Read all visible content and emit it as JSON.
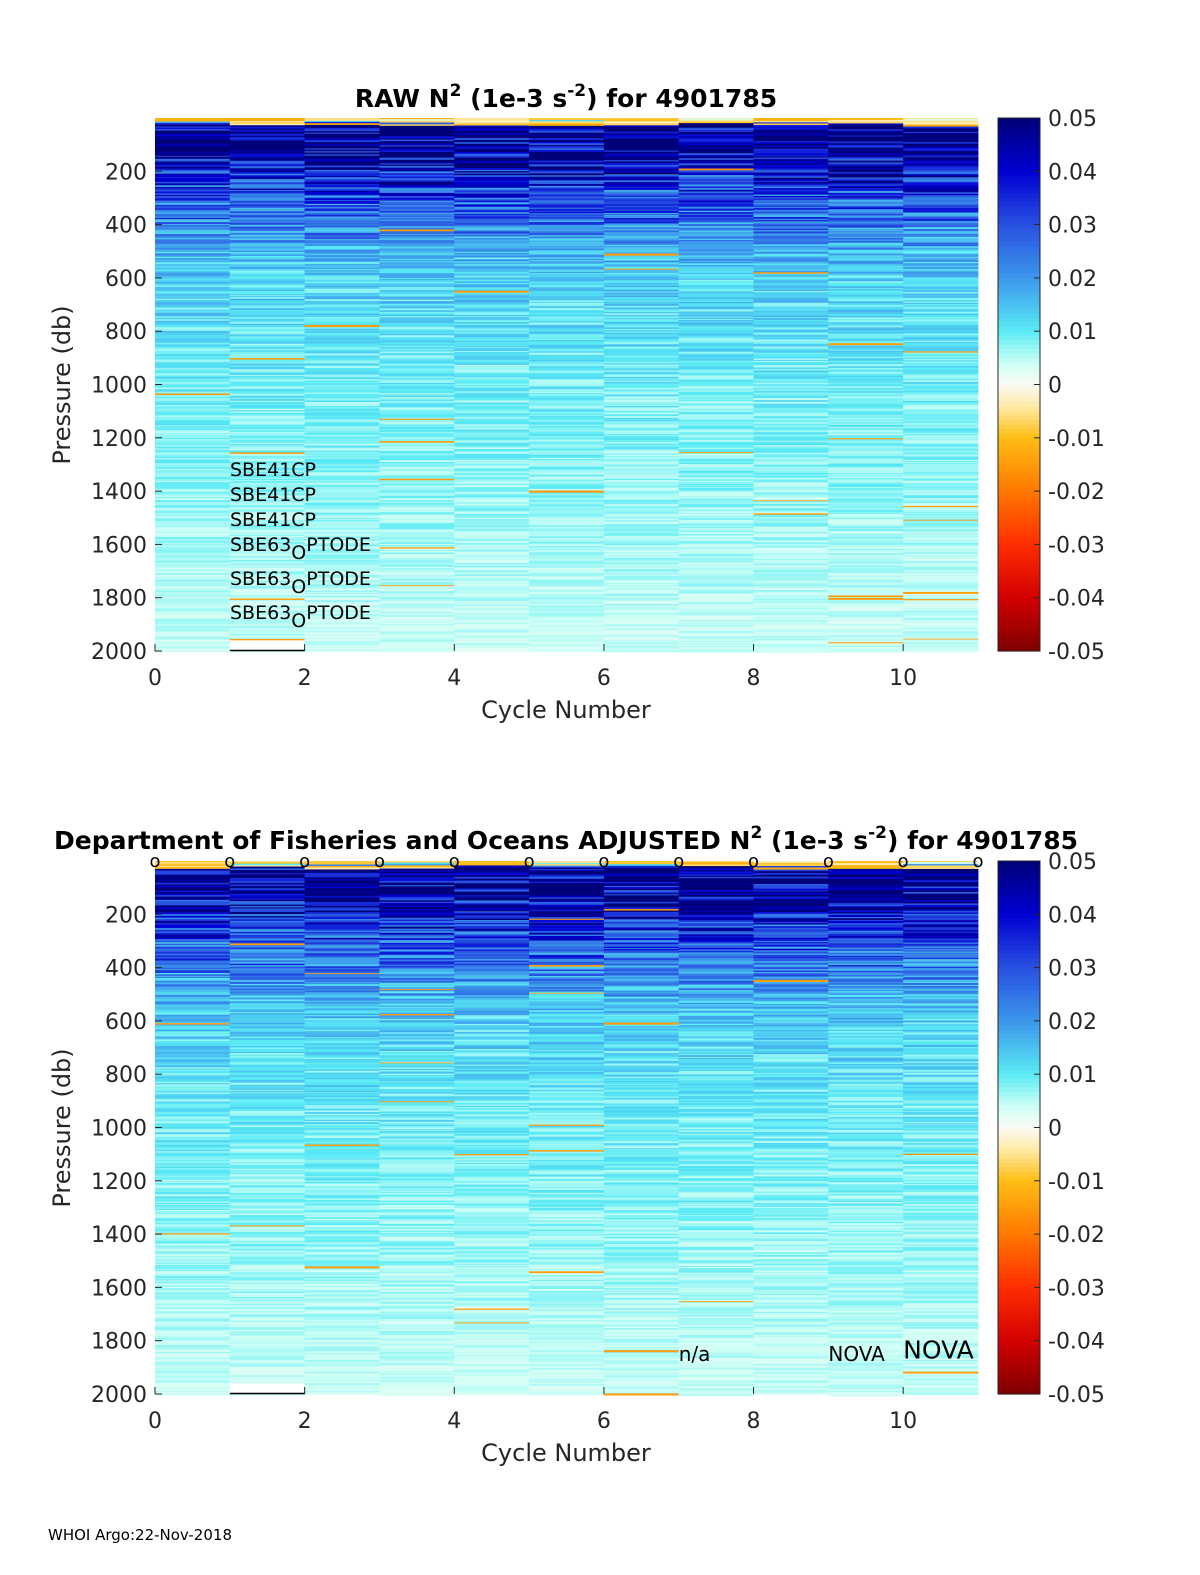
{
  "chart_data": [
    {
      "type": "heatmap",
      "title": {
        "prefix": "RAW N",
        "sup1": "2",
        "mid": " (1e-3 s",
        "sup2": "-2",
        "suffix": ") for 4901785"
      },
      "xlabel": "Cycle Number",
      "ylabel": "Pressure (db)",
      "xlim": [
        0,
        11
      ],
      "ylim": [
        2000,
        0
      ],
      "xticks": [
        "0",
        "2",
        "4",
        "6",
        "8",
        "10"
      ],
      "xtick_values": [
        0,
        2,
        4,
        6,
        8,
        10
      ],
      "yticks": [
        "200",
        "400",
        "600",
        "800",
        "1000",
        "1200",
        "1400",
        "1600",
        "1800",
        "2000"
      ],
      "ytick_values": [
        200,
        400,
        600,
        800,
        1000,
        1200,
        1400,
        1600,
        1800,
        2000
      ],
      "colorbar": {
        "colormap": "jet-diverging",
        "range": [
          -0.05,
          0.05
        ],
        "ticks": [
          "0.05",
          "0.04",
          "0.03",
          "0.02",
          "0.01",
          "0",
          "-0.01",
          "-0.02",
          "-0.03",
          "-0.04",
          "-0.05"
        ],
        "tick_values": [
          0.05,
          0.04,
          0.03,
          0.02,
          0.01,
          0,
          -0.01,
          -0.02,
          -0.03,
          -0.04,
          -0.05
        ]
      },
      "cycles": [
        0,
        1,
        2,
        3,
        4,
        5,
        6,
        7,
        8,
        9,
        10
      ],
      "depth_profile": {
        "pressure_db": [
          0,
          25,
          50,
          100,
          150,
          200,
          300,
          400,
          500,
          600,
          800,
          1000,
          1200,
          1400,
          1600,
          1800,
          2000
        ],
        "n2_typical": [
          -0.004,
          0.05,
          0.05,
          0.05,
          0.045,
          0.038,
          0.03,
          0.024,
          0.017,
          0.013,
          0.011,
          0.009,
          0.008,
          0.007,
          0.006,
          0.005,
          0.004
        ]
      },
      "sensor_labels": [
        {
          "text": "SBE41CP"
        },
        {
          "text": "SBE41CP"
        },
        {
          "text": "SBE41CP"
        },
        {
          "main": "SBE63",
          "sub": "O",
          "rest": "PTODE"
        },
        {
          "main": "SBE63",
          "sub": "O",
          "rest": "PTODE"
        },
        {
          "main": "SBE63",
          "sub": "O",
          "rest": "PTODE"
        }
      ]
    },
    {
      "type": "heatmap",
      "title": {
        "prefix": "Department of Fisheries and Oceans  ADJUSTED N",
        "sup1": "2",
        "mid": " (1e-3 s",
        "sup2": "-2",
        "suffix": ") for 4901785"
      },
      "xlabel": "Cycle Number",
      "ylabel": "Pressure (db)",
      "xlim": [
        0,
        11
      ],
      "ylim": [
        2000,
        0
      ],
      "xticks": [
        "0",
        "2",
        "4",
        "6",
        "8",
        "10"
      ],
      "xtick_values": [
        0,
        2,
        4,
        6,
        8,
        10
      ],
      "yticks": [
        "200",
        "400",
        "600",
        "800",
        "1000",
        "1200",
        "1400",
        "1600",
        "1800",
        "2000"
      ],
      "ytick_values": [
        200,
        400,
        600,
        800,
        1000,
        1200,
        1400,
        1600,
        1800,
        2000
      ],
      "colorbar": {
        "colormap": "jet-diverging",
        "range": [
          -0.05,
          0.05
        ],
        "ticks": [
          "0.05",
          "0.04",
          "0.03",
          "0.02",
          "0.01",
          "0",
          "-0.01",
          "-0.02",
          "-0.03",
          "-0.04",
          "-0.05"
        ],
        "tick_values": [
          0.05,
          0.04,
          0.03,
          0.02,
          0.01,
          0,
          -0.01,
          -0.02,
          -0.03,
          -0.04,
          -0.05
        ]
      },
      "cycles": [
        0,
        1,
        2,
        3,
        4,
        5,
        6,
        7,
        8,
        9,
        10
      ],
      "qc_flags": [
        "o",
        "o",
        "o",
        "o",
        "o",
        "o",
        "o",
        "o",
        "o",
        "o",
        "o",
        "o"
      ],
      "qc_flag_x": [
        0,
        1,
        2,
        3,
        4,
        5,
        6,
        7,
        8,
        9,
        10,
        11
      ],
      "annotations": [
        {
          "text": "n/a",
          "x": 7,
          "y": 1850
        },
        {
          "text": "NOVA",
          "x": 9,
          "y": 1850
        },
        {
          "text": "NOVA",
          "x": 10,
          "y": 1840,
          "large": true
        }
      ]
    }
  ],
  "footer": "WHOI Argo:22-Nov-2018"
}
